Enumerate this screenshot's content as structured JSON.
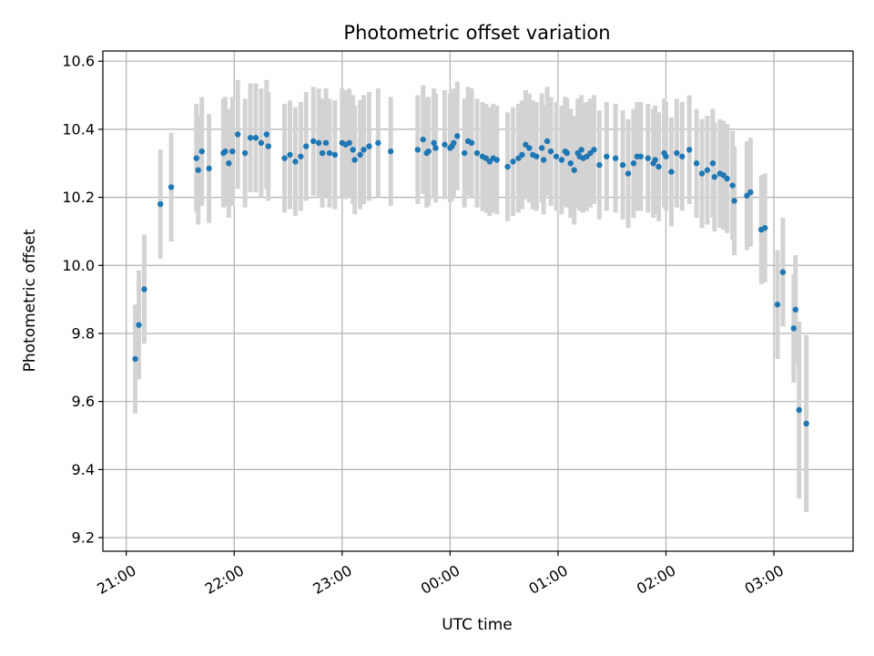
{
  "chart_data": {
    "type": "scatter",
    "title": "Photometric offset variation",
    "xlabel": "UTC time",
    "ylabel": "Photometric offset",
    "x_tick_labels": [
      "21:00",
      "22:00",
      "23:00",
      "00:00",
      "01:00",
      "02:00",
      "03:00"
    ],
    "x_tick_minutes": [
      0,
      60,
      120,
      180,
      240,
      300,
      360
    ],
    "y_ticks": [
      9.2,
      9.4,
      9.6,
      9.8,
      10.0,
      10.2,
      10.4,
      10.6
    ],
    "y_tick_labels": [
      "9.2",
      "9.4",
      "9.6",
      "9.8",
      "10.0",
      "10.2",
      "10.4",
      "10.6"
    ],
    "xlim_minutes": [
      -13,
      404
    ],
    "ylim": [
      9.16,
      10.63
    ],
    "grid": true,
    "point_color": "#1f77b4",
    "errorbar_color": "#d3d3d3",
    "series": [
      {
        "x_minutes": [
          5,
          7,
          10,
          19,
          25,
          39,
          40,
          42,
          46,
          54,
          55,
          57,
          59,
          62,
          66,
          69,
          72,
          75,
          78,
          79,
          88,
          91,
          94,
          97,
          100,
          104,
          107,
          109,
          111,
          113,
          116,
          120,
          122,
          124,
          126,
          127,
          130,
          132,
          135,
          140,
          147,
          162,
          165,
          167,
          168,
          171,
          172,
          177,
          180,
          181,
          182,
          184,
          188,
          190,
          192,
          195,
          198,
          200,
          202,
          204,
          206,
          212,
          215,
          218,
          220,
          222,
          224,
          226,
          228,
          231,
          232,
          234,
          236,
          239,
          242,
          244,
          245,
          247,
          249,
          251,
          252,
          253,
          254,
          256,
          258,
          260,
          263,
          267,
          272,
          276,
          279,
          282,
          284,
          286,
          290,
          293,
          294,
          296,
          299,
          300,
          303,
          306,
          309,
          313,
          317,
          320,
          323,
          326,
          327,
          330,
          332,
          334,
          337,
          338,
          345,
          347,
          353,
          355,
          365,
          362,
          372,
          371,
          374,
          378
        ],
        "y": [
          9.725,
          9.825,
          9.93,
          10.18,
          10.23,
          10.315,
          10.28,
          10.335,
          10.285,
          10.33,
          10.335,
          10.3,
          10.335,
          10.385,
          10.33,
          10.375,
          10.375,
          10.36,
          10.385,
          10.35,
          10.315,
          10.325,
          10.305,
          10.32,
          10.35,
          10.365,
          10.36,
          10.33,
          10.36,
          10.33,
          10.325,
          10.36,
          10.355,
          10.36,
          10.34,
          10.31,
          10.325,
          10.34,
          10.35,
          10.36,
          10.335,
          10.34,
          10.37,
          10.33,
          10.335,
          10.36,
          10.345,
          10.355,
          10.345,
          10.35,
          10.36,
          10.38,
          10.33,
          10.365,
          10.36,
          10.33,
          10.32,
          10.315,
          10.305,
          10.315,
          10.31,
          10.29,
          10.305,
          10.315,
          10.325,
          10.355,
          10.345,
          10.325,
          10.32,
          10.345,
          10.31,
          10.365,
          10.335,
          10.32,
          10.31,
          10.335,
          10.33,
          10.3,
          10.28,
          10.33,
          10.32,
          10.34,
          10.315,
          10.32,
          10.33,
          10.34,
          10.295,
          10.32,
          10.315,
          10.295,
          10.27,
          10.3,
          10.32,
          10.32,
          10.315,
          10.3,
          10.31,
          10.29,
          10.33,
          10.32,
          10.275,
          10.33,
          10.32,
          10.34,
          10.3,
          10.27,
          10.28,
          10.3,
          10.26,
          10.27,
          10.265,
          10.255,
          10.235,
          10.19,
          10.205,
          10.215,
          10.105,
          10.11,
          9.98,
          9.885,
          9.87,
          9.815,
          9.575,
          9.535
        ],
        "err": [
          0.16,
          0.16,
          0.16,
          0.16,
          0.16,
          0.16,
          0.16,
          0.16,
          0.16,
          0.16,
          0.16,
          0.16,
          0.16,
          0.16,
          0.16,
          0.16,
          0.16,
          0.16,
          0.16,
          0.16,
          0.16,
          0.16,
          0.16,
          0.16,
          0.16,
          0.16,
          0.16,
          0.16,
          0.16,
          0.16,
          0.16,
          0.16,
          0.16,
          0.16,
          0.16,
          0.16,
          0.16,
          0.16,
          0.16,
          0.16,
          0.16,
          0.16,
          0.16,
          0.16,
          0.16,
          0.16,
          0.16,
          0.16,
          0.16,
          0.16,
          0.16,
          0.16,
          0.16,
          0.16,
          0.16,
          0.16,
          0.16,
          0.16,
          0.16,
          0.16,
          0.16,
          0.16,
          0.16,
          0.16,
          0.16,
          0.16,
          0.16,
          0.16,
          0.16,
          0.16,
          0.16,
          0.16,
          0.16,
          0.16,
          0.16,
          0.16,
          0.16,
          0.16,
          0.16,
          0.16,
          0.16,
          0.16,
          0.16,
          0.16,
          0.16,
          0.16,
          0.16,
          0.16,
          0.16,
          0.16,
          0.16,
          0.16,
          0.16,
          0.16,
          0.16,
          0.16,
          0.16,
          0.16,
          0.16,
          0.16,
          0.16,
          0.16,
          0.16,
          0.16,
          0.16,
          0.16,
          0.16,
          0.16,
          0.16,
          0.16,
          0.16,
          0.16,
          0.16,
          0.16,
          0.16,
          0.16,
          0.16,
          0.16,
          0.16,
          0.16,
          0.16,
          0.16,
          0.26,
          0.26
        ]
      }
    ]
  }
}
